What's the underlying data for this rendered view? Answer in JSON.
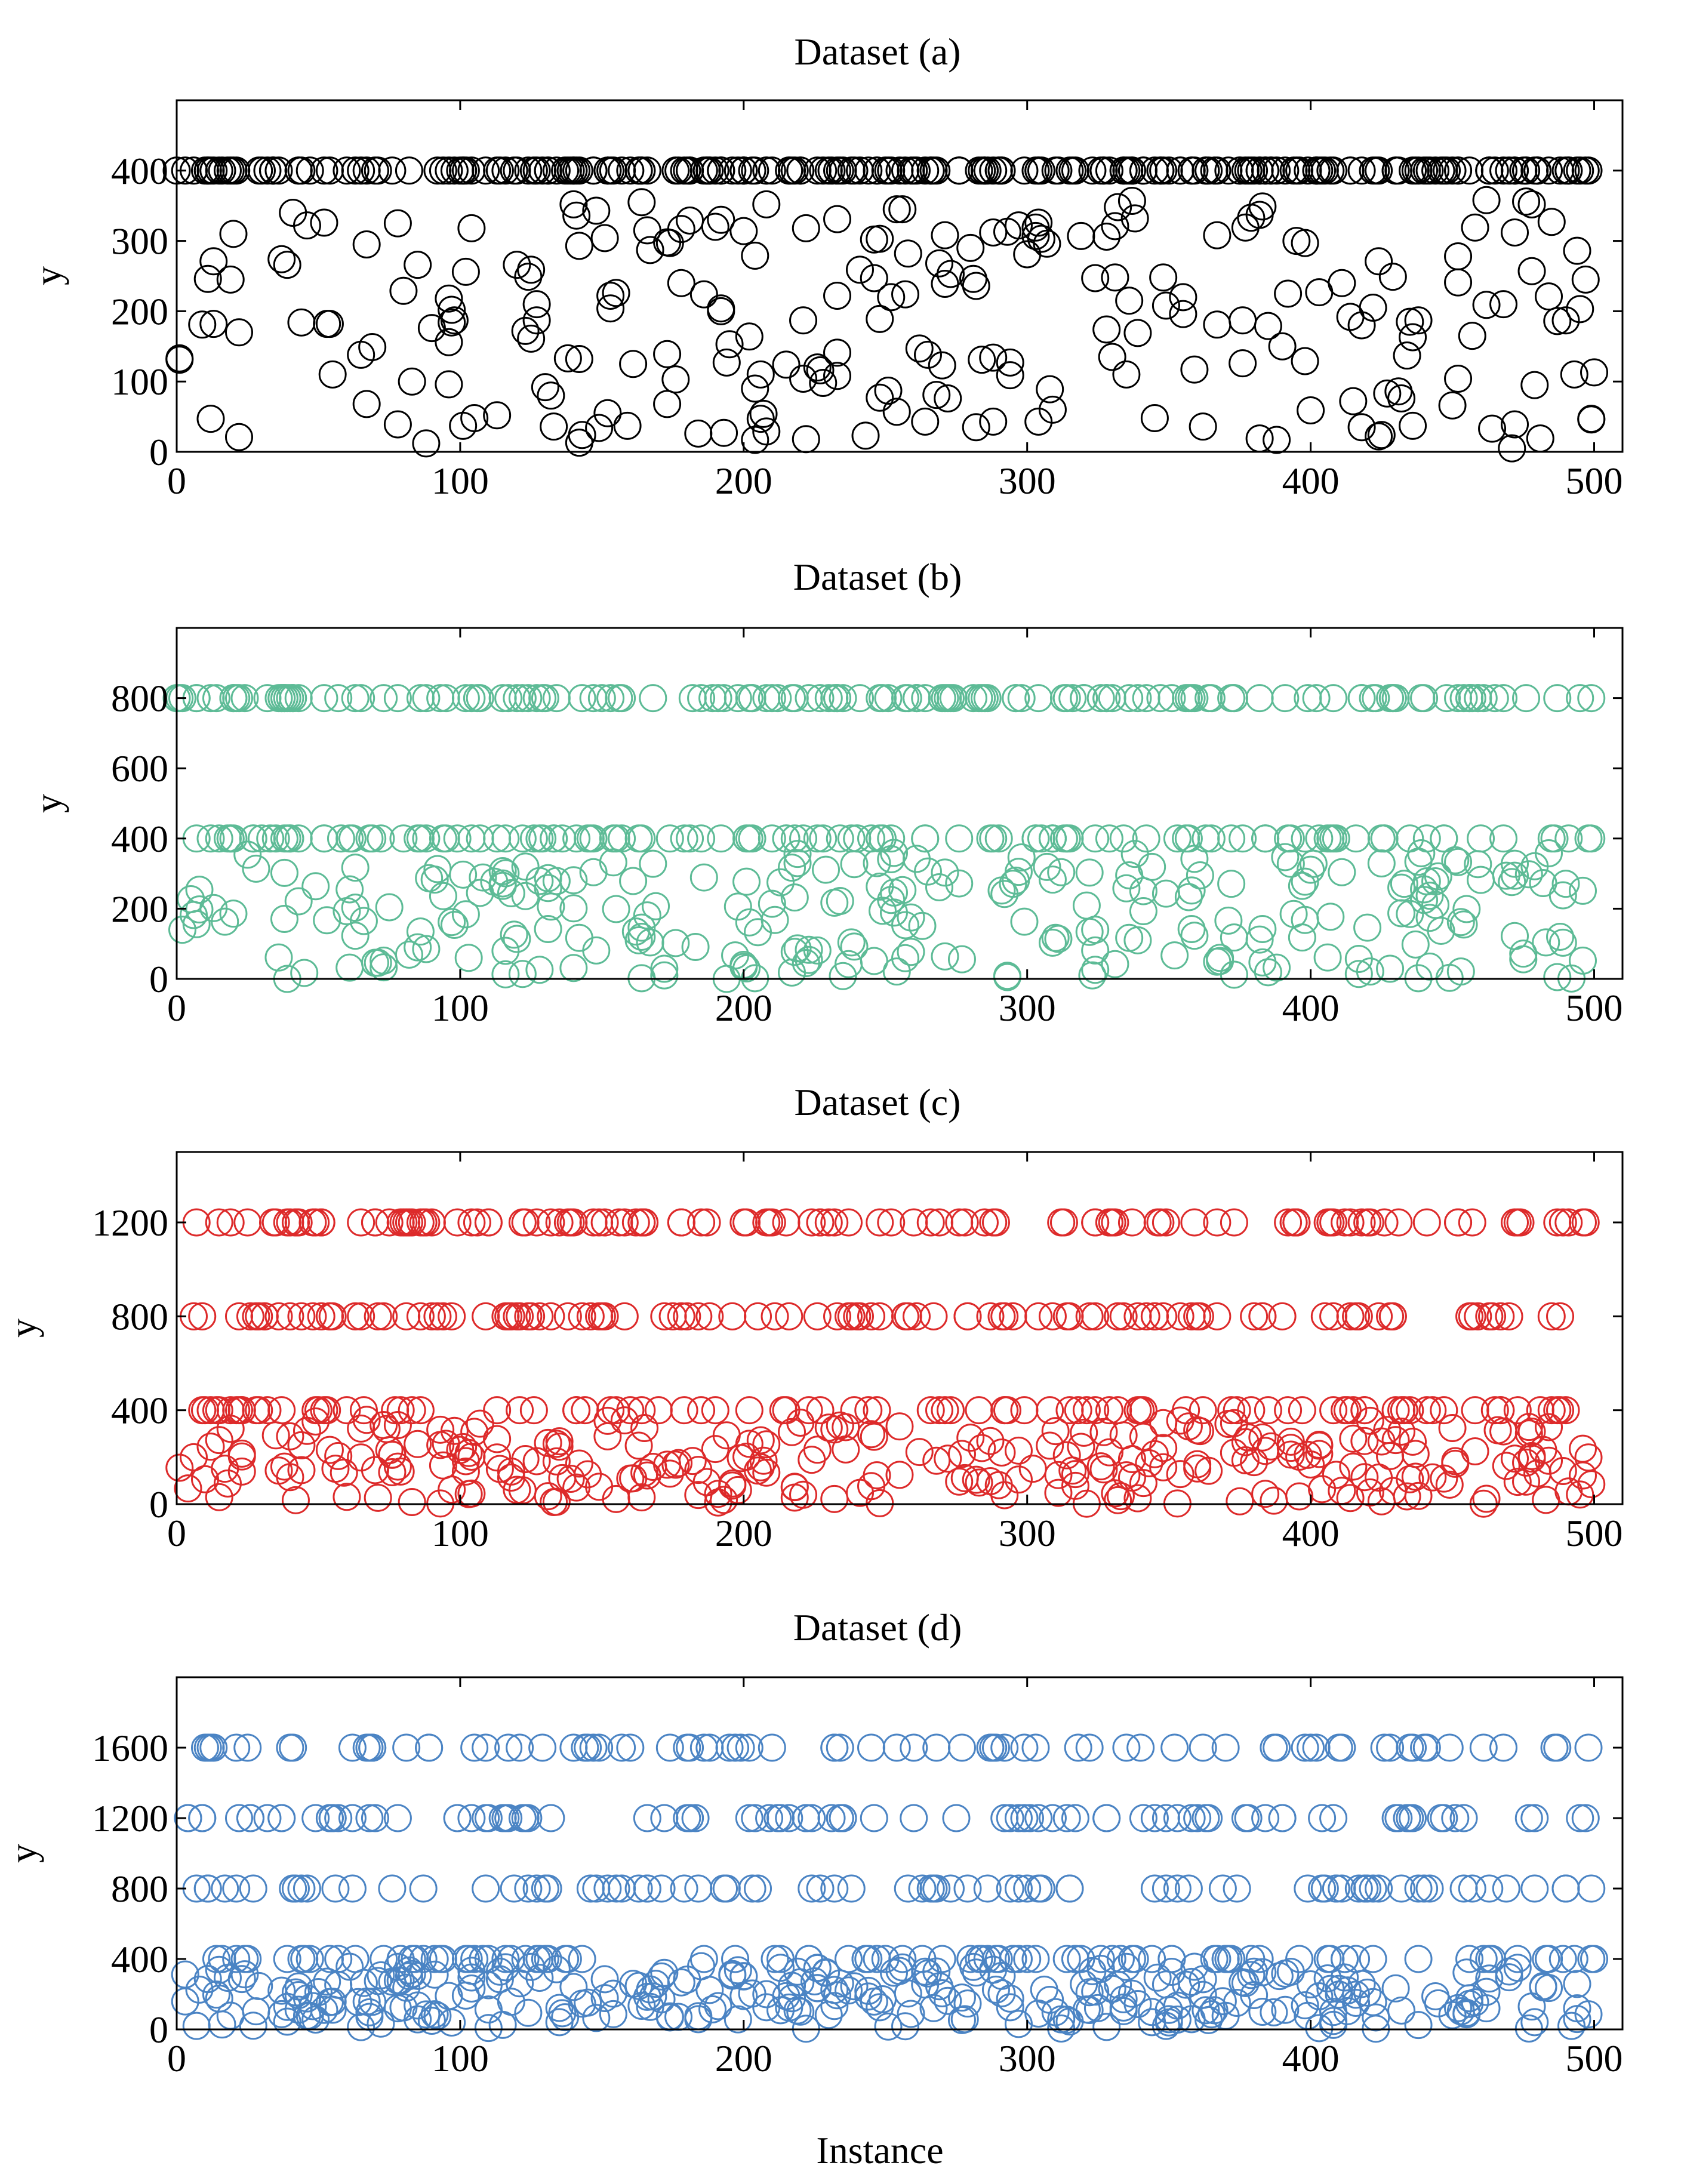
{
  "figure": {
    "xlabel": "Instance"
  },
  "chart_data": [
    {
      "type": "scatter",
      "title": "Dataset (a)",
      "ylabel": "y",
      "xlim": [
        0,
        510
      ],
      "ylim": [
        0,
        500
      ],
      "xticks": [
        0,
        100,
        200,
        300,
        400,
        500
      ],
      "yticks": [
        0,
        100,
        200,
        300,
        400
      ],
      "color": "#000000",
      "levels": [
        400
      ],
      "high_count": 260,
      "low_max": 360,
      "low_count": 240,
      "seed": 11
    },
    {
      "type": "scatter",
      "title": "Dataset (b)",
      "ylabel": "y",
      "xlim": [
        0,
        510
      ],
      "ylim": [
        0,
        1000
      ],
      "xticks": [
        0,
        100,
        200,
        300,
        400,
        500
      ],
      "yticks": [
        0,
        200,
        400,
        600,
        800
      ],
      "color": "#5dbb96",
      "levels": [
        400,
        800
      ],
      "high_count": 280,
      "low_max": 360,
      "low_count": 260,
      "seed": 23
    },
    {
      "type": "scatter",
      "title": "Dataset (c)",
      "ylabel": "y",
      "xlim": [
        0,
        510
      ],
      "ylim": [
        0,
        1500
      ],
      "xticks": [
        0,
        100,
        200,
        300,
        400,
        500
      ],
      "yticks": [
        0,
        400,
        800,
        1200
      ],
      "color": "#dd2a2a",
      "levels": [
        400,
        800,
        1200
      ],
      "high_count": 330,
      "low_max": 360,
      "low_count": 280,
      "seed": 37
    },
    {
      "type": "scatter",
      "title": "Dataset (d)",
      "ylabel": "y",
      "xlim": [
        0,
        510
      ],
      "ylim": [
        0,
        2000
      ],
      "xticks": [
        0,
        100,
        200,
        300,
        400,
        500
      ],
      "yticks": [
        0,
        400,
        800,
        1200,
        1600
      ],
      "color": "#4b84c4",
      "levels": [
        400,
        800,
        1200,
        1600
      ],
      "high_count": 360,
      "low_max": 360,
      "low_count": 300,
      "seed": 53
    }
  ]
}
